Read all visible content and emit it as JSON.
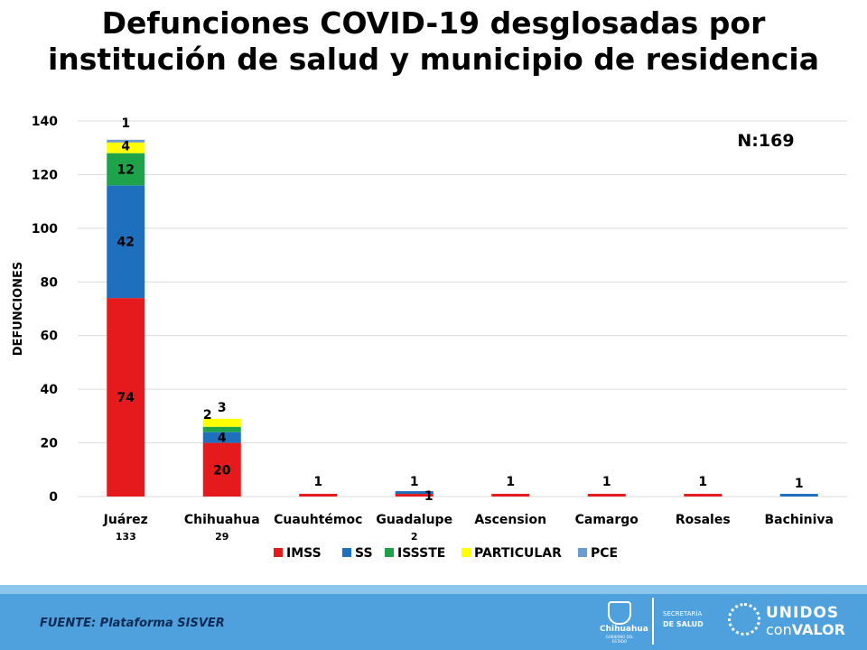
{
  "title_line1": "Defunciones COVID-19 desglosadas por",
  "title_line2": "institución de salud y municipio de residencia",
  "chart_data": {
    "type": "bar",
    "stacked": true,
    "ylabel": "DEFUNCIONES",
    "ylim": [
      0,
      140
    ],
    "yticks": [
      0,
      20,
      40,
      60,
      80,
      100,
      120,
      140
    ],
    "categories": [
      "Juárez",
      "Chihuahua",
      "Cuauhtémoc",
      "Guadalupe",
      "Ascension",
      "Camargo",
      "Rosales",
      "Bachiniva"
    ],
    "totals": [
      "133",
      "29",
      "",
      "2",
      "",
      "",
      "",
      ""
    ],
    "series": [
      {
        "name": "IMSS",
        "color": "#e41a1c",
        "values": [
          74,
          20,
          1,
          1,
          1,
          1,
          1,
          0
        ]
      },
      {
        "name": "SS",
        "color": "#1f6fbf",
        "values": [
          42,
          4,
          0,
          1,
          0,
          0,
          0,
          1
        ]
      },
      {
        "name": "ISSSTE",
        "color": "#1fa34a",
        "values": [
          12,
          2,
          0,
          0,
          0,
          0,
          0,
          0
        ]
      },
      {
        "name": "PARTICULAR",
        "color": "#ffff00",
        "values": [
          4,
          3,
          0,
          0,
          0,
          0,
          0,
          0
        ]
      },
      {
        "name": "PCE",
        "color": "#6b9bd1",
        "values": [
          1,
          0,
          0,
          0,
          0,
          0,
          0,
          0
        ]
      }
    ],
    "annotation": "N:169",
    "grid": true,
    "legend_position": "bottom"
  },
  "footer": {
    "source": "FUENTE: Plataforma SISVER",
    "logo_chihuahua": "Chihuahua",
    "logo_chihuahua_sub": "GOBIERNO DEL ESTADO",
    "secretaria_line1": "SECRETARÍA",
    "secretaria_line2": "DE SALUD",
    "unidos_line1": "UNIDOS",
    "unidos_con": "con",
    "unidos_valor": "VALOR"
  }
}
